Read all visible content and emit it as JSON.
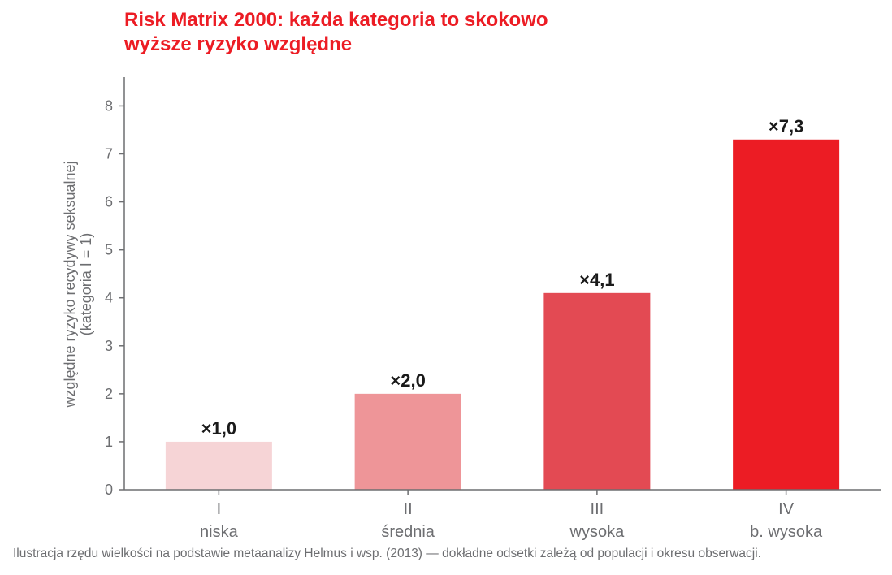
{
  "chart_data": {
    "type": "bar",
    "title_lines": [
      "Risk Matrix 2000: każda kategoria to skokowo",
      "wyższe ryzyko względne"
    ],
    "ylabel_lines": [
      "względne ryzyko recydywy seksualnej",
      "(kategoria I = 1)"
    ],
    "xlabel": "",
    "categories": [
      {
        "code": "I",
        "name": "niska"
      },
      {
        "code": "II",
        "name": "średnia"
      },
      {
        "code": "III",
        "name": "wysoka"
      },
      {
        "code": "IV",
        "name": "b. wysoka"
      }
    ],
    "values": [
      1.0,
      2.0,
      4.1,
      7.3
    ],
    "data_labels": [
      "×1,0",
      "×2,0",
      "×4,1",
      "×7,3"
    ],
    "bar_colors": [
      "#f6d4d6",
      "#ee9598",
      "#e34a53",
      "#ec1c24"
    ],
    "ylim": [
      0,
      8.6
    ],
    "yticks": [
      0,
      1,
      2,
      3,
      4,
      5,
      6,
      7,
      8
    ],
    "grid": false,
    "legend": "none"
  },
  "footnote": "Ilustracja rzędu wielkości na podstawie metaanalizy Helmus i wsp. (2013) — dokładne odsetki zależą od populacji i okresu obserwacji."
}
